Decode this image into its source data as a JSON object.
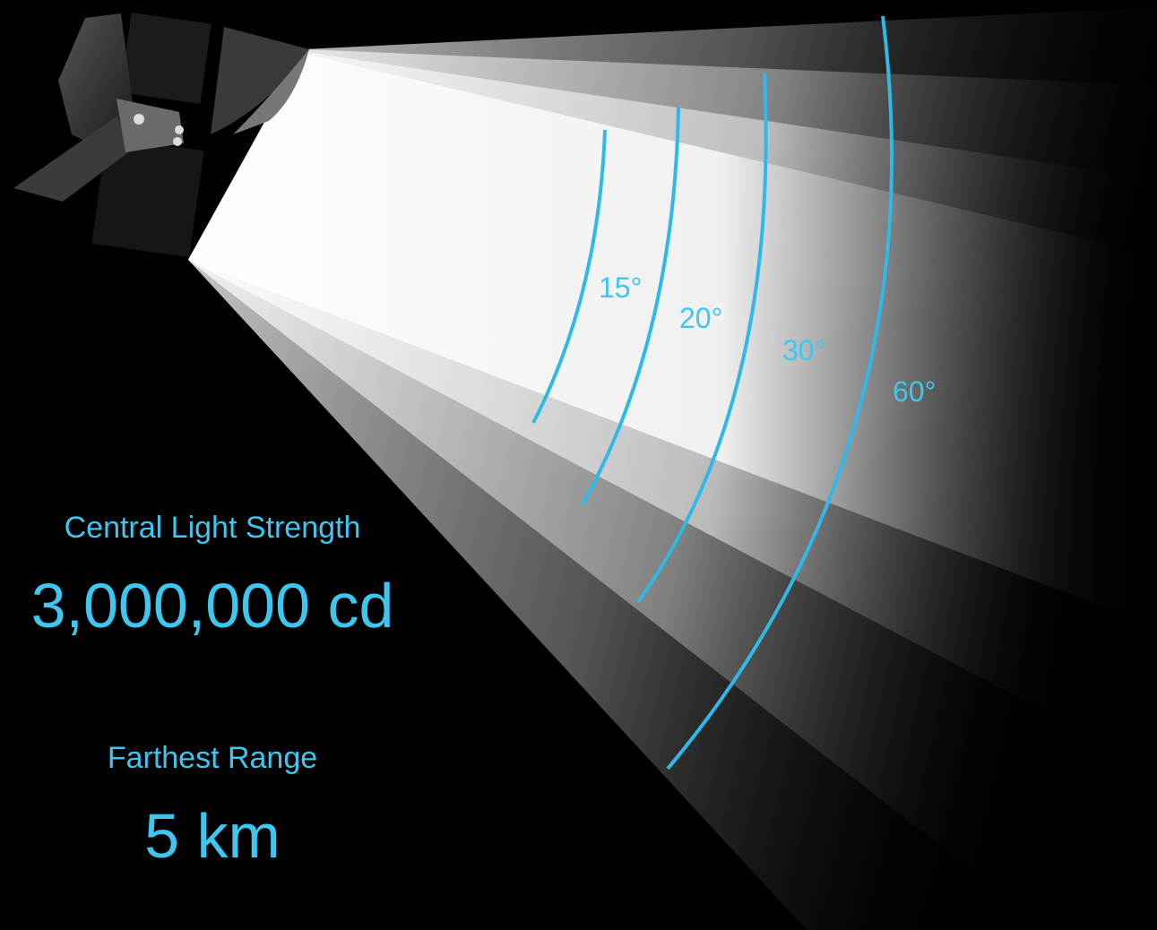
{
  "beam_angles": [
    "15°",
    "20°",
    "30°",
    "60°"
  ],
  "specs": [
    {
      "label": "Central Light Strength",
      "value": "3,000,000 cd"
    },
    {
      "label": "Farthest Range",
      "value": "5 km"
    }
  ]
}
